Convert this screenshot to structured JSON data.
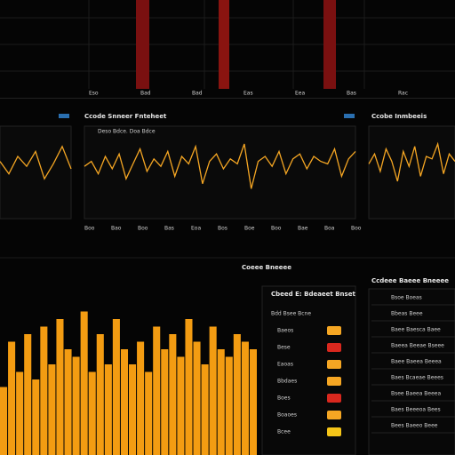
{
  "header": {
    "axis_labels": [
      "Eso",
      "Bad",
      "Bad",
      "Eas",
      "Eea",
      "Bas",
      "Rac"
    ]
  },
  "panels": [
    {
      "title": "Ccode Snneer Fnteheet",
      "subtitle": "Deso Bdce. Doa Bdce",
      "x_labels": [
        "Boo",
        "Bao",
        "Boo",
        "Bas",
        "Eoa",
        "Bos",
        "Boe",
        "Boo",
        "Bae",
        "Boa",
        "Boo"
      ],
      "values": [
        0.1,
        0.3,
        -0.2,
        0.5,
        0.0,
        0.6,
        -0.4,
        0.2,
        0.8,
        -0.1,
        0.4,
        0.1,
        0.7,
        -0.3,
        0.5,
        0.2,
        0.9,
        -0.6,
        0.3,
        0.6,
        0.0,
        0.4,
        0.2,
        1.0,
        -0.8,
        0.3,
        0.5,
        0.1,
        0.7,
        -0.2,
        0.4,
        0.6,
        0.0,
        0.5,
        0.3,
        0.2,
        0.8,
        -0.3,
        0.4,
        0.7
      ]
    },
    {
      "title": "Ccobe Inmbeeis",
      "values": [
        0.2,
        0.6,
        -0.1,
        0.8,
        0.3,
        -0.5,
        0.7,
        0.1,
        0.9,
        -0.3,
        0.5,
        0.4,
        1.0,
        -0.2,
        0.6,
        0.3
      ]
    },
    {
      "title": "",
      "values": [
        0.3,
        -0.2,
        0.5,
        0.1,
        0.7,
        -0.4,
        0.2,
        0.9,
        0.0
      ]
    }
  ],
  "bars": {
    "values": [
      0.45,
      0.75,
      0.55,
      0.8,
      0.5,
      0.85,
      0.6,
      0.9,
      0.7,
      0.65,
      0.95,
      0.55,
      0.8,
      0.6,
      0.9,
      0.7,
      0.6,
      0.75,
      0.55,
      0.85,
      0.7,
      0.8,
      0.65,
      0.9,
      0.75,
      0.6,
      0.85,
      0.7,
      0.65,
      0.8,
      0.75,
      0.7
    ]
  },
  "legend_table": {
    "title": "Cbeed E: Bdeaeet Bnset",
    "header": "Bdd Bsee Bcne",
    "rows": [
      {
        "label": "Baeos",
        "color": "#f5a623"
      },
      {
        "label": "Bese",
        "color": "#d9281e"
      },
      {
        "label": "Eaoas",
        "color": "#f5a623"
      },
      {
        "label": "Bbdaes",
        "color": "#f5a623"
      },
      {
        "label": "Boes",
        "color": "#d9281e"
      },
      {
        "label": "Boaoes",
        "color": "#f5a623"
      },
      {
        "label": "Bcee",
        "color": "#f5c518"
      }
    ]
  },
  "side_table": {
    "title": "Ccdeee Baeee Bneeee",
    "rows": [
      "Bsoe Boeas",
      "Bbeas Beee",
      "Baee Baesca Baee",
      "Baeea Beeae Bseee",
      "Baee Baeea Beeea",
      "Baes Bcaeae Beees",
      "Bsee Baeea Beeea",
      "Baes Beeeoa Bees",
      "Bees Baeeo Beee"
    ]
  },
  "section_title": "Coeee Bneeee"
}
